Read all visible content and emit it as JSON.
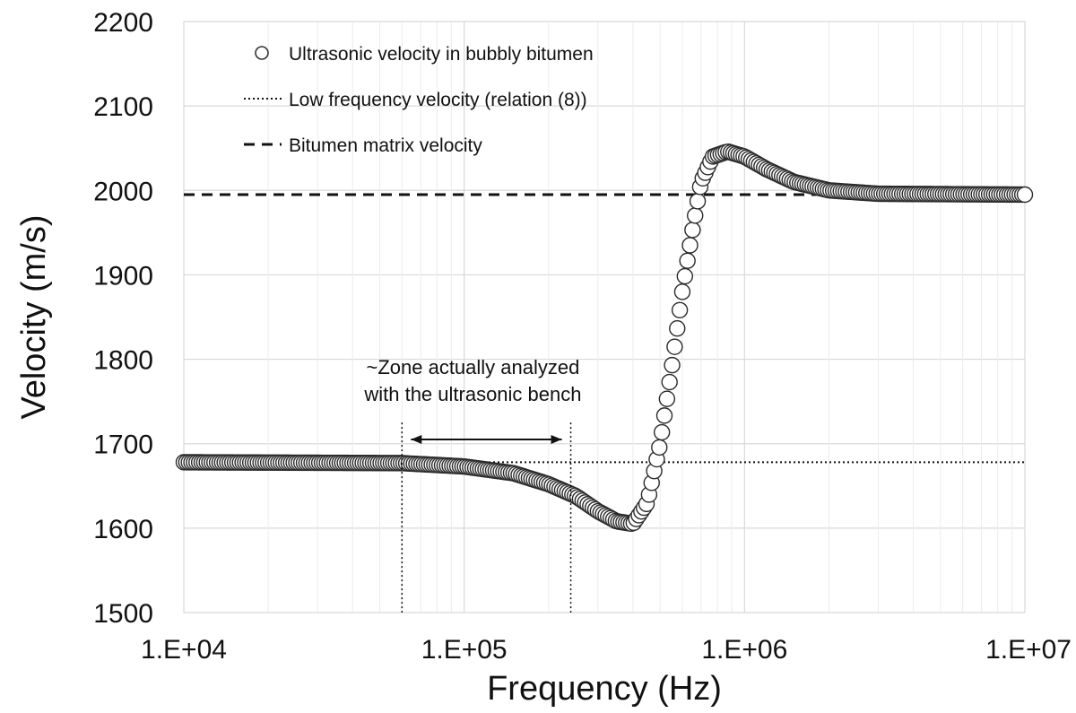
{
  "chart_data": {
    "type": "scatter",
    "xscale": "log",
    "xlim": [
      10000,
      10000000
    ],
    "ylim": [
      1500,
      2200
    ],
    "xlabel": "Frequency (Hz)",
    "ylabel": "Velocity (m/s)",
    "x_tick_labels": [
      "1.E+04",
      "1.E+05",
      "1.E+06",
      "1.E+07"
    ],
    "x_tick_values": [
      10000,
      100000,
      1000000,
      10000000
    ],
    "y_tick_labels": [
      "1500",
      "1600",
      "1700",
      "1800",
      "1900",
      "2000",
      "2100",
      "2200"
    ],
    "y_tick_values": [
      1500,
      1600,
      1700,
      1800,
      1900,
      2000,
      2100,
      2200
    ],
    "grid": true,
    "legend": {
      "placement": "top-left",
      "entries": [
        {
          "label": "Ultrasonic velocity in bubbly bitumen",
          "marker": "circle-open"
        },
        {
          "label": "Low frequency velocity (relation (8))",
          "marker": "dotted-line"
        },
        {
          "label": "Bitumen matrix velocity",
          "marker": "dashed-line"
        }
      ]
    },
    "series": [
      {
        "name": "Ultrasonic velocity in bubbly bitumen",
        "style": "open-circle",
        "curve_points": [
          {
            "x": 10000,
            "y": 1678
          },
          {
            "x": 60000,
            "y": 1677
          },
          {
            "x": 100000,
            "y": 1673
          },
          {
            "x": 150000,
            "y": 1665
          },
          {
            "x": 200000,
            "y": 1652
          },
          {
            "x": 250000,
            "y": 1638
          },
          {
            "x": 300000,
            "y": 1620
          },
          {
            "x": 350000,
            "y": 1608
          },
          {
            "x": 400000,
            "y": 1605
          },
          {
            "x": 450000,
            "y": 1630
          },
          {
            "x": 500000,
            "y": 1700
          },
          {
            "x": 550000,
            "y": 1790
          },
          {
            "x": 600000,
            "y": 1880
          },
          {
            "x": 650000,
            "y": 1950
          },
          {
            "x": 700000,
            "y": 2010
          },
          {
            "x": 770000,
            "y": 2040
          },
          {
            "x": 870000,
            "y": 2046
          },
          {
            "x": 1000000,
            "y": 2040
          },
          {
            "x": 1200000,
            "y": 2025
          },
          {
            "x": 1500000,
            "y": 2010
          },
          {
            "x": 2000000,
            "y": 2000
          },
          {
            "x": 3000000,
            "y": 1996
          },
          {
            "x": 10000000,
            "y": 1995
          }
        ]
      },
      {
        "name": "Low frequency velocity (relation (8))",
        "style": "dotted",
        "x": [
          10000,
          10000000
        ],
        "y": [
          1678,
          1678
        ]
      },
      {
        "name": "Bitumen matrix velocity",
        "style": "dashed",
        "x": [
          10000,
          1800000
        ],
        "y": [
          1995,
          1995
        ]
      }
    ],
    "annotations": {
      "zone_line1": "~Zone actually analyzed",
      "zone_line2": "with the ultrasonic bench",
      "zone_x_start": 60000,
      "zone_x_end": 240000,
      "zone_y_top": 1725,
      "arrow_y": 1705
    }
  }
}
